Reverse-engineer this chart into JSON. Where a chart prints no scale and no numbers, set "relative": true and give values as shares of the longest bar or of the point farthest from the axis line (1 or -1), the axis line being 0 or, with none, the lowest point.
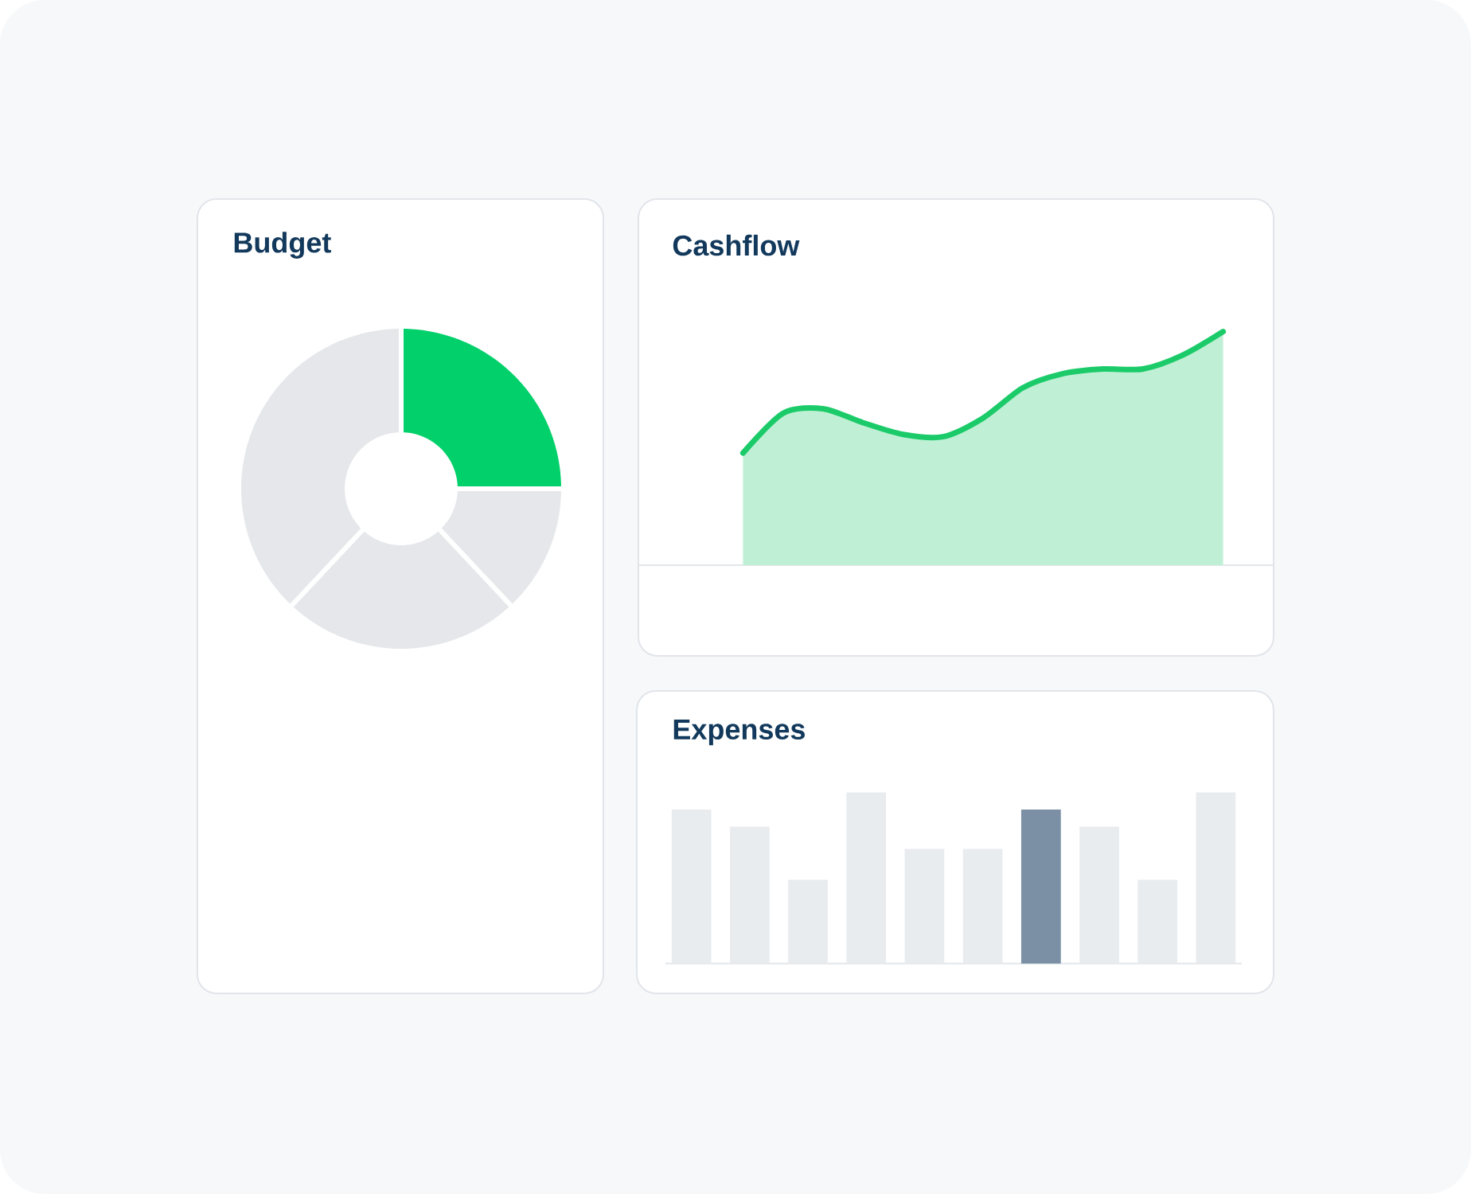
{
  "chart_data": [
    {
      "type": "donut",
      "title": "Budget",
      "categories": [
        null,
        null,
        null,
        null
      ],
      "values": [
        25,
        13,
        24,
        38
      ],
      "colors": [
        "#02d16b",
        "#e5e7eb",
        "#e5e7eb",
        "#e5e7eb"
      ]
    },
    {
      "type": "area",
      "title": "Cashflow",
      "relative": true,
      "color": "#1bcb69",
      "categories": [
        null,
        null,
        null,
        null,
        null,
        null,
        null,
        null,
        null,
        null,
        null,
        null,
        null
      ],
      "values": [
        0.48,
        0.65,
        0.67,
        0.61,
        0.56,
        0.55,
        0.63,
        0.76,
        0.82,
        0.84,
        0.84,
        0.9,
        1
      ]
    },
    {
      "type": "bar",
      "title": "Expenses",
      "relative": true,
      "categories": [
        null,
        null,
        null,
        null,
        null,
        null,
        null,
        null,
        null,
        null
      ],
      "values": [
        0.9,
        0.8,
        0.49,
        1,
        0.67,
        0.67,
        0.9,
        0.8,
        0.49,
        1
      ],
      "colors": [
        "#e9ecef",
        "#e9ecef",
        "#e9ecef",
        "#e9ecef",
        "#e9ecef",
        "#e9ecef",
        "#7b8fa5",
        "#e9ecef",
        "#e9ecef",
        "#e9ecef"
      ]
    }
  ]
}
